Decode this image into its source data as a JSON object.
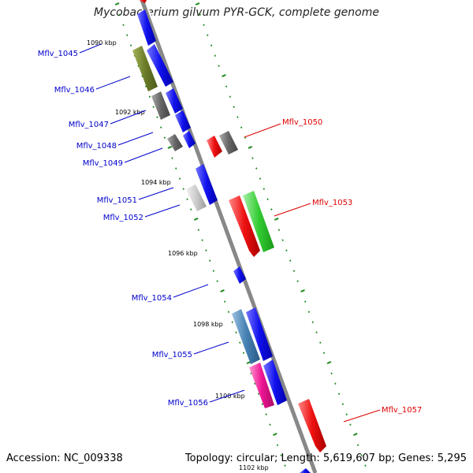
{
  "title": "Mycobacterium gilvum PYR-GCK, complete genome",
  "footer": {
    "accession": "Accession: NC_009338",
    "summary": "Topology: circular; Length: 5,619,607 bp; Genes: 5,295"
  },
  "colors": {
    "backbone": "#888888",
    "ticks": "#1a8a1a",
    "left_label": "#0000cc",
    "right_label": "#dd0000"
  },
  "scale_labels": [
    "1090 kbp",
    "1092 kbp",
    "1094 kbp",
    "1096 kbp",
    "1098 kbp",
    "1100 kbp",
    "1102 kbp"
  ],
  "genes": [
    {
      "id": "Mflv_1045",
      "side": "left",
      "color": "#1111ee"
    },
    {
      "id": "Mflv_1046",
      "side": "left",
      "color": "#1111ee"
    },
    {
      "id": "Mflv_1047",
      "side": "left",
      "color": "#1111ee"
    },
    {
      "id": "Mflv_1048",
      "side": "left",
      "color": "#1111ee"
    },
    {
      "id": "Mflv_1049",
      "side": "left",
      "color": "#1111ee"
    },
    {
      "id": "Mflv_1050",
      "side": "right",
      "color": "#ee1111"
    },
    {
      "id": "Mflv_1051",
      "side": "left",
      "color": "#1111ee"
    },
    {
      "id": "Mflv_1052",
      "side": "left",
      "color": "#1111ee"
    },
    {
      "id": "Mflv_1053",
      "side": "right",
      "color": "#ee1111"
    },
    {
      "id": "Mflv_1054",
      "side": "left",
      "color": "#1111ee"
    },
    {
      "id": "Mflv_1055",
      "side": "left",
      "color": "#1111ee"
    },
    {
      "id": "Mflv_1056",
      "side": "left",
      "color": "#1111ee"
    },
    {
      "id": "Mflv_1057",
      "side": "right",
      "color": "#ee1111"
    }
  ]
}
